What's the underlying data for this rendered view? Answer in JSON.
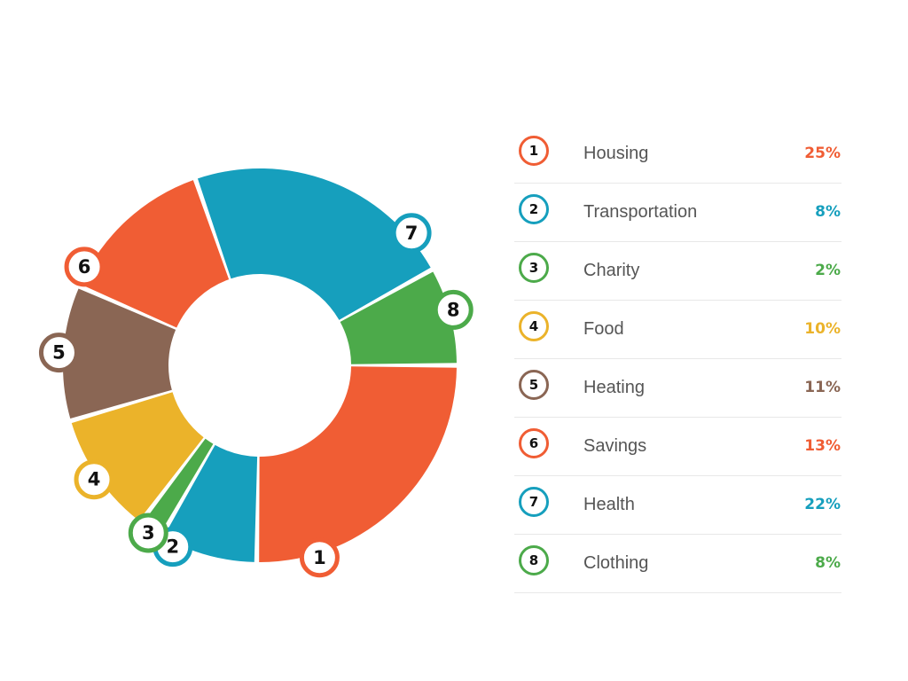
{
  "chart_data": {
    "type": "pie",
    "variant": "donut",
    "unit": "%",
    "grid": false,
    "legend_placement": "right",
    "slices": [
      {
        "number": "1",
        "label": "Housing",
        "value": 25,
        "value_label": "25%",
        "color": "#f05d34"
      },
      {
        "number": "2",
        "label": "Transportation",
        "value": 8,
        "value_label": "8%",
        "color": "#169fbd"
      },
      {
        "number": "3",
        "label": "Charity",
        "value": 2,
        "value_label": "2%",
        "color": "#4caa4a"
      },
      {
        "number": "4",
        "label": "Food",
        "value": 10,
        "value_label": "10%",
        "color": "#ebb32a"
      },
      {
        "number": "5",
        "label": "Heating",
        "value": 11,
        "value_label": "11%",
        "color": "#8a6654"
      },
      {
        "number": "6",
        "label": "Savings",
        "value": 13,
        "value_label": "13%",
        "color": "#f05d34"
      },
      {
        "number": "7",
        "label": "Health",
        "value": 22,
        "value_label": "22%",
        "color": "#169fbd"
      },
      {
        "number": "8",
        "label": "Clothing",
        "value": 8,
        "value_label": "8%",
        "color": "#4caa4a"
      }
    ]
  }
}
